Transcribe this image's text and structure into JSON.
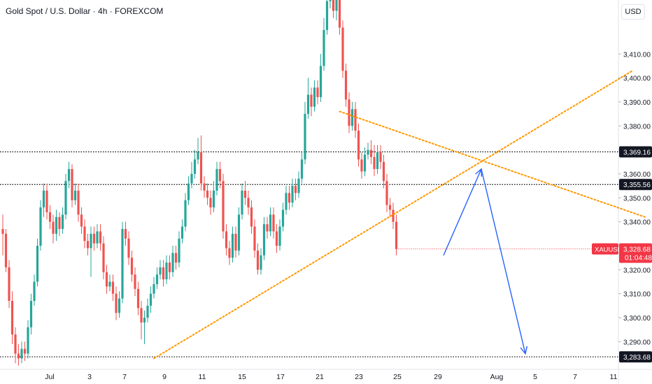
{
  "header": {
    "title": "Gold Spot / U.S. Dollar · 4h · FOREXCOM",
    "currency": "USD"
  },
  "colors": {
    "up": "#26a69a",
    "down": "#ef5350",
    "trendline": "#ff9800",
    "projection": "#2962ff",
    "level_line": "#000000",
    "price_badge": "#f23645"
  },
  "chart_data": {
    "type": "candlestick",
    "interval": "4h",
    "x_ticks": [
      "Jul",
      "3",
      "7",
      "9",
      "11",
      "15",
      "17",
      "21",
      "23",
      "25",
      "29",
      "Aug",
      "5",
      "7",
      "11"
    ],
    "y_ticks": [
      3290,
      3300,
      3310,
      3320,
      3330,
      3340,
      3350,
      3360,
      3370,
      3380,
      3390,
      3400,
      3410
    ],
    "y_tick_labels": [
      "3,290.00",
      "3,300.00",
      "3,310.00",
      "3,320.00",
      "3,330.00",
      "3,340.00",
      "3,350.00",
      "3,360.00",
      "3,370.00",
      "3,380.00",
      "3,390.00",
      "3,400.00",
      "3,410.00"
    ],
    "ylim": [
      3280.5,
      3432.5
    ],
    "grid": false,
    "candles": [
      [
        3337,
        3335,
        3326,
        3343
      ],
      [
        3335,
        3321,
        3319,
        3337
      ],
      [
        3321,
        3307,
        3304,
        3324
      ],
      [
        3307,
        3293,
        3289,
        3311
      ],
      [
        3293,
        3285,
        3281,
        3296
      ],
      [
        3285,
        3283,
        3280,
        3289
      ],
      [
        3283,
        3287,
        3281,
        3290
      ],
      [
        3287,
        3285,
        3282,
        3290
      ],
      [
        3285,
        3296,
        3283,
        3299
      ],
      [
        3296,
        3307,
        3293,
        3310
      ],
      [
        3307,
        3315,
        3305,
        3318
      ],
      [
        3315,
        3330,
        3313,
        3333
      ],
      [
        3330,
        3346,
        3328,
        3349
      ],
      [
        3346,
        3353,
        3342,
        3356
      ],
      [
        3353,
        3344,
        3341,
        3356
      ],
      [
        3344,
        3340,
        3337,
        3347
      ],
      [
        3340,
        3335,
        3331,
        3343
      ],
      [
        3335,
        3342,
        3332,
        3345
      ],
      [
        3342,
        3337,
        3334,
        3344
      ],
      [
        3337,
        3343,
        3335,
        3346
      ],
      [
        3343,
        3357,
        3341,
        3360
      ],
      [
        3357,
        3362,
        3354,
        3365
      ],
      [
        3362,
        3349,
        3346,
        3364
      ],
      [
        3349,
        3353,
        3347,
        3356
      ],
      [
        3353,
        3343,
        3340,
        3356
      ],
      [
        3343,
        3338,
        3335,
        3346
      ],
      [
        3338,
        3332,
        3329,
        3341
      ],
      [
        3332,
        3329,
        3326,
        3335
      ],
      [
        3329,
        3335,
        3317,
        3338
      ],
      [
        3335,
        3331,
        3328,
        3338
      ],
      [
        3331,
        3336,
        3329,
        3339
      ],
      [
        3336,
        3331,
        3328,
        3339
      ],
      [
        3331,
        3319,
        3316,
        3334
      ],
      [
        3319,
        3313,
        3310,
        3322
      ],
      [
        3313,
        3315,
        3311,
        3318
      ],
      [
        3315,
        3310,
        3307,
        3318
      ],
      [
        3310,
        3302,
        3299,
        3313
      ],
      [
        3302,
        3308,
        3300,
        3311
      ],
      [
        3308,
        3337,
        3306,
        3340
      ],
      [
        3337,
        3333,
        3330,
        3340
      ],
      [
        3333,
        3325,
        3322,
        3336
      ],
      [
        3325,
        3318,
        3315,
        3328
      ],
      [
        3318,
        3312,
        3309,
        3321
      ],
      [
        3312,
        3304,
        3301,
        3315
      ],
      [
        3304,
        3298,
        3291,
        3307
      ],
      [
        3298,
        3300,
        3289,
        3303
      ],
      [
        3300,
        3305,
        3298,
        3308
      ],
      [
        3305,
        3310,
        3302,
        3313
      ],
      [
        3310,
        3314,
        3308,
        3317
      ],
      [
        3314,
        3318,
        3312,
        3321
      ],
      [
        3318,
        3321,
        3316,
        3324
      ],
      [
        3321,
        3316,
        3313,
        3324
      ],
      [
        3316,
        3323,
        3314,
        3326
      ],
      [
        3323,
        3319,
        3316,
        3326
      ],
      [
        3319,
        3327,
        3317,
        3330
      ],
      [
        3327,
        3323,
        3320,
        3330
      ],
      [
        3323,
        3333,
        3321,
        3336
      ],
      [
        3333,
        3338,
        3331,
        3341
      ],
      [
        3338,
        3349,
        3336,
        3352
      ],
      [
        3349,
        3356,
        3347,
        3359
      ],
      [
        3356,
        3360,
        3354,
        3365
      ],
      [
        3360,
        3366,
        3358,
        3370
      ],
      [
        3366,
        3369,
        3364,
        3375
      ],
      [
        3369,
        3356,
        3353,
        3376
      ],
      [
        3356,
        3353,
        3350,
        3359
      ],
      [
        3353,
        3350,
        3347,
        3356
      ],
      [
        3350,
        3346,
        3343,
        3353
      ],
      [
        3346,
        3353,
        3344,
        3357
      ],
      [
        3353,
        3362,
        3351,
        3365
      ],
      [
        3362,
        3357,
        3354,
        3365
      ],
      [
        3357,
        3336,
        3333,
        3360
      ],
      [
        3336,
        3329,
        3326,
        3339
      ],
      [
        3329,
        3325,
        3322,
        3332
      ],
      [
        3325,
        3335,
        3323,
        3338
      ],
      [
        3335,
        3328,
        3325,
        3338
      ],
      [
        3328,
        3343,
        3326,
        3346
      ],
      [
        3343,
        3353,
        3341,
        3356
      ],
      [
        3353,
        3350,
        3347,
        3357
      ],
      [
        3350,
        3346,
        3343,
        3353
      ],
      [
        3346,
        3338,
        3335,
        3349
      ],
      [
        3338,
        3328,
        3325,
        3341
      ],
      [
        3328,
        3320,
        3318,
        3331
      ],
      [
        3320,
        3326,
        3318,
        3329
      ],
      [
        3326,
        3339,
        3324,
        3342
      ],
      [
        3339,
        3336,
        3333,
        3342
      ],
      [
        3336,
        3343,
        3334,
        3346
      ],
      [
        3343,
        3336,
        3333,
        3346
      ],
      [
        3336,
        3330,
        3327,
        3339
      ],
      [
        3330,
        3338,
        3328,
        3341
      ],
      [
        3338,
        3345,
        3336,
        3348
      ],
      [
        3345,
        3352,
        3343,
        3355
      ],
      [
        3352,
        3348,
        3345,
        3355
      ],
      [
        3348,
        3355,
        3346,
        3358
      ],
      [
        3355,
        3352,
        3349,
        3358
      ],
      [
        3352,
        3358,
        3350,
        3361
      ],
      [
        3358,
        3366,
        3356,
        3369
      ],
      [
        3366,
        3385,
        3364,
        3390
      ],
      [
        3385,
        3393,
        3383,
        3400
      ],
      [
        3393,
        3388,
        3384,
        3396
      ],
      [
        3388,
        3396,
        3386,
        3399
      ],
      [
        3396,
        3392,
        3389,
        3399
      ],
      [
        3392,
        3405,
        3390,
        3410
      ],
      [
        3405,
        3420,
        3403,
        3425
      ],
      [
        3420,
        3432,
        3418,
        3434
      ],
      [
        3432,
        3434,
        3429,
        3435
      ],
      [
        3434,
        3428,
        3425,
        3435
      ],
      [
        3428,
        3433,
        3424,
        3435
      ],
      [
        3433,
        3421,
        3418,
        3435
      ],
      [
        3421,
        3403,
        3400,
        3424
      ],
      [
        3403,
        3391,
        3388,
        3406
      ],
      [
        3391,
        3380,
        3377,
        3394
      ],
      [
        3380,
        3387,
        3378,
        3390
      ],
      [
        3387,
        3378,
        3375,
        3390
      ],
      [
        3378,
        3366,
        3363,
        3381
      ],
      [
        3366,
        3361,
        3358,
        3369
      ],
      [
        3361,
        3368,
        3359,
        3371
      ],
      [
        3368,
        3370,
        3366,
        3373
      ],
      [
        3370,
        3367,
        3364,
        3374
      ],
      [
        3367,
        3362,
        3359,
        3372
      ],
      [
        3362,
        3369,
        3360,
        3372
      ],
      [
        3369,
        3365,
        3362,
        3372
      ],
      [
        3365,
        3357,
        3354,
        3368
      ],
      [
        3357,
        3347,
        3344,
        3360
      ],
      [
        3347,
        3345,
        3342,
        3350
      ],
      [
        3345,
        3340,
        3337,
        3348
      ],
      [
        3340,
        3328.68,
        3326,
        3343
      ]
    ],
    "levels": [
      {
        "price": 3369.16,
        "label": "3,369.16",
        "style": "dotted"
      },
      {
        "price": 3355.56,
        "label": "3,355.56",
        "style": "dotted"
      },
      {
        "price": 3283.68,
        "label": "3,283.68",
        "style": "dotted"
      }
    ],
    "trendlines": [
      {
        "from": {
          "bar": 48,
          "price": 3283
        },
        "to": {
          "bar": 200,
          "price": 3403
        },
        "style": "dotted",
        "role": "rising support"
      },
      {
        "from": {
          "bar": 107,
          "price": 3386
        },
        "to": {
          "bar": 204,
          "price": 3342
        },
        "style": "dotted",
        "role": "falling resistance"
      }
    ],
    "projection": [
      {
        "bar": 140,
        "price": 3326
      },
      {
        "bar": 152,
        "price": 3362
      },
      {
        "bar": 166,
        "price": 3285
      }
    ],
    "current_price": {
      "symbol": "XAUUSD",
      "price": 3328.68,
      "price_label": "3,328.68",
      "countdown": "01:04:48"
    }
  }
}
